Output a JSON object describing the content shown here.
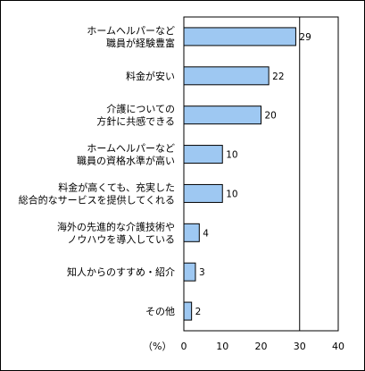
{
  "chart_data": {
    "type": "bar",
    "orientation": "horizontal",
    "categories": [
      [
        "ホームヘルパーなど",
        "職員が経験豊富"
      ],
      [
        "料金が安い"
      ],
      [
        "介護についての",
        "方針に共感できる"
      ],
      [
        "ホームヘルパーなど",
        "職員の資格水準が高い"
      ],
      [
        "料金が高くても、充実した",
        "総合的なサービスを提供してくれる"
      ],
      [
        "海外の先進的な介護技術や",
        "ノウハウを導入している"
      ],
      [
        "知人からのすすめ・紹介"
      ],
      [
        "その他"
      ]
    ],
    "values": [
      29,
      22,
      20,
      10,
      10,
      4,
      3,
      2
    ],
    "xticks": [
      "0",
      "10",
      "20",
      "30",
      "40"
    ],
    "xunit": "（%）",
    "xlim": [
      0,
      40
    ],
    "grid": "vertical-at-30",
    "bar_color": "#9ec8f2",
    "bar_edge_color": "#000000"
  }
}
